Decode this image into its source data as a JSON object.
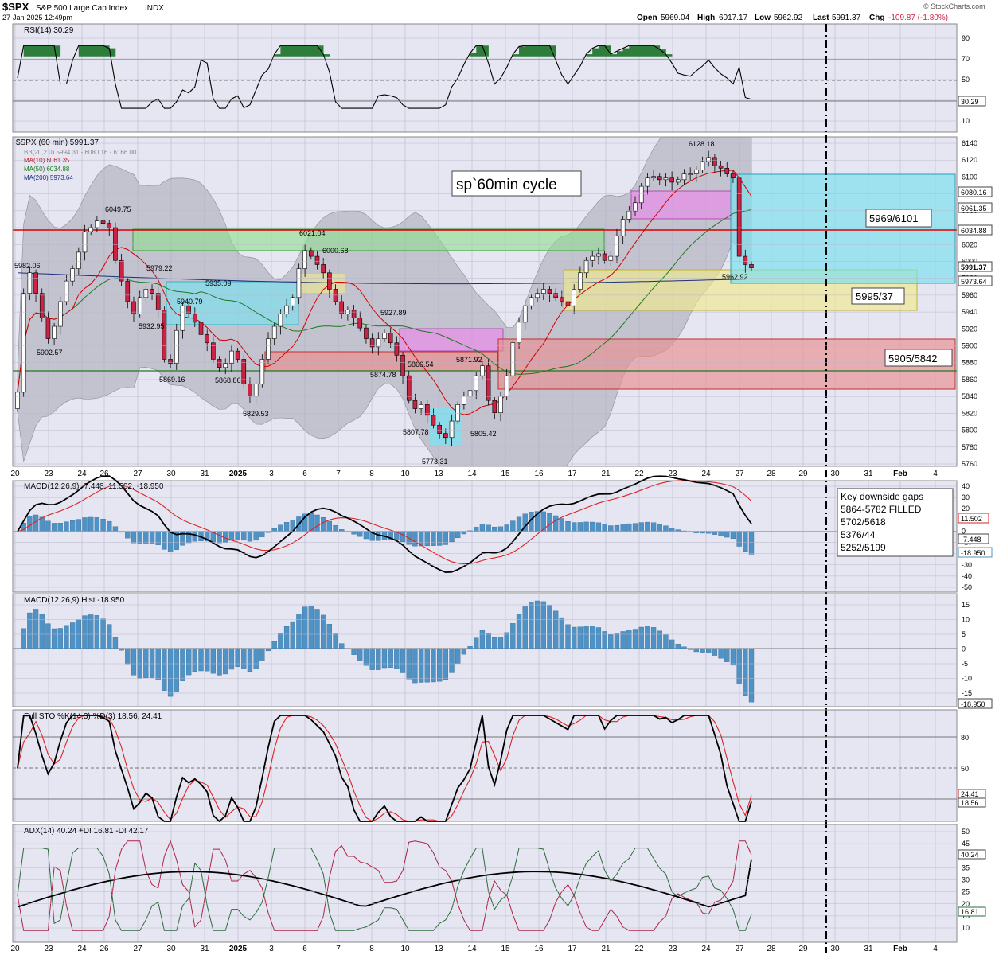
{
  "header": {
    "symbol": "$SPX",
    "name": "S&P 500 Large Cap Index",
    "exchange": "INDX",
    "date": "27-Jan-2025 12:49pm",
    "open_label": "Open",
    "open": "5969.04",
    "high_label": "High",
    "high": "6017.17",
    "low_label": "Low",
    "low": "5962.92",
    "last_label": "Last",
    "last": "5991.37",
    "chg_label": "Chg",
    "chg": "-109.87 (-1.80%)",
    "brand": "© StockCharts.com"
  },
  "colors": {
    "panel_bg": "#e6e6f2",
    "grid": "#b8b8cc",
    "up": "#ffffff",
    "down": "#cc2244",
    "macd_hist": "#4f93c6",
    "green_zone": "#8ee08a",
    "cyan_zone": "#7fe0ee",
    "yellow_zone": "#efe98a",
    "red_zone": "#ea8f8f",
    "magenta_zone": "#e690e6"
  },
  "x_axis": {
    "labels": [
      "20",
      "23",
      "24",
      "26",
      "27",
      "30",
      "31",
      "2025",
      "3",
      "6",
      "7",
      "8",
      "10",
      "13",
      "14",
      "15",
      "16",
      "17",
      "21",
      "22",
      "23",
      "24",
      "27",
      "28",
      "29",
      "30",
      "31",
      "Feb",
      "4"
    ]
  },
  "rsi": {
    "label": "RSI(14) 30.29",
    "value_tag": "30.29",
    "ticks": [
      "90",
      "70",
      "50",
      "30",
      "10"
    ]
  },
  "price": {
    "title": "$SPX (60 min) 5991.37",
    "legend": [
      {
        "text": "BB(20,2.0) 5994.31 - 6080.16 - 6166.00",
        "color": "#888888"
      },
      {
        "text": "MA(10) 6061.35",
        "color": "#cc0000"
      },
      {
        "text": "MA(50) 6034.88",
        "color": "#1c7a1c"
      },
      {
        "text": "MA(200) 5973.64",
        "color": "#1c2f7a"
      }
    ],
    "ticks": [
      "6140",
      "6120",
      "6100",
      "6080",
      "6060",
      "6040",
      "6020",
      "6000",
      "5980",
      "5960",
      "5940",
      "5920",
      "5900",
      "5880",
      "5860",
      "5840",
      "5820",
      "5800",
      "5780",
      "5760"
    ],
    "tags": [
      {
        "text": "6080.16",
        "bg": "#ffffff"
      },
      {
        "text": "6061.35",
        "bg": "#ffffff"
      },
      {
        "text": "6034.88",
        "bg": "#ffffff"
      },
      {
        "text": "5991.37",
        "bg": "#ffffff"
      },
      {
        "text": "5973.64",
        "bg": "#ffffff"
      }
    ],
    "annotations": [
      {
        "text": "6049.75"
      },
      {
        "text": "5982.06"
      },
      {
        "text": "5979.22"
      },
      {
        "text": "5902.57"
      },
      {
        "text": "5932.95"
      },
      {
        "text": "5940.79"
      },
      {
        "text": "5935.09"
      },
      {
        "text": "5869.16"
      },
      {
        "text": "5868.86"
      },
      {
        "text": "5829.53"
      },
      {
        "text": "6021.04"
      },
      {
        "text": "6000.68"
      },
      {
        "text": "5927.89"
      },
      {
        "text": "5874.78"
      },
      {
        "text": "5866.54"
      },
      {
        "text": "5871.92"
      },
      {
        "text": "5807.78"
      },
      {
        "text": "5773.31"
      },
      {
        "text": "5805.42"
      },
      {
        "text": "6128.18"
      },
      {
        "text": "5962.92"
      }
    ],
    "boxes": {
      "cycle": "sp`60min cycle",
      "target_hi": "5969/6101",
      "target_mid": "5995/37",
      "target_lo": "5905/5842"
    }
  },
  "macd": {
    "label": "MACD(12,26,9) -7.448, 11.502, -18.950",
    "ticks": [
      "40",
      "30",
      "20",
      "10",
      "0",
      "-10",
      "-20",
      "-30",
      "-40",
      "-50"
    ],
    "tags": [
      "11.502",
      "-7.448",
      "-18.950"
    ],
    "gaps_note": [
      "Key downside gaps",
      "5864-5782 FILLED",
      "5702/5618",
      "5376/44",
      "5252/5199"
    ]
  },
  "hist": {
    "label": "MACD(12,26,9) Hist -18.950",
    "ticks": [
      "15",
      "10",
      "5",
      "0",
      "-5",
      "-10",
      "-15"
    ],
    "tag": "-18.950"
  },
  "sto": {
    "label": "Full STO %K(14,3) %D(3) 18.56, 24.41",
    "ticks": [
      "80",
      "50"
    ],
    "tags": [
      "24.41",
      "18.56"
    ]
  },
  "adx": {
    "label": "ADX(14) 40.24 +DI 16.81 -DI 42.17",
    "ticks": [
      "50",
      "45",
      "40",
      "35",
      "30",
      "25",
      "20",
      "15",
      "10"
    ],
    "tags": [
      "40.24",
      "16.81"
    ]
  },
  "chart_data": {
    "type": "candlestick",
    "title": "$SPX (60 min) 5991.37",
    "ylim": [
      5750,
      6150
    ],
    "key_levels": {
      "high": 6128.18,
      "low": 5773.31,
      "last": 5991.37,
      "bb_upper": 6166.0,
      "bb_mid": 6080.16,
      "bb_lower": 5994.31,
      "ma10": 6061.35,
      "ma50": 6034.88,
      "ma200": 5973.64
    },
    "labeled_swings": [
      6049.75,
      5982.06,
      5979.22,
      5902.57,
      5932.95,
      5940.79,
      5935.09,
      5869.16,
      5868.86,
      5829.53,
      6021.04,
      6000.68,
      5927.89,
      5874.78,
      5866.54,
      5871.92,
      5807.78,
      5773.31,
      5805.42,
      6128.18,
      5962.92
    ],
    "closes": [
      5840,
      5960,
      5985,
      5960,
      5930,
      5905,
      5920,
      5950,
      5975,
      5990,
      6010,
      6035,
      6040,
      6048,
      6045,
      6040,
      6000,
      5975,
      5950,
      5935,
      5955,
      5965,
      5960,
      5940,
      5880,
      5875,
      5915,
      5945,
      5935,
      5925,
      5910,
      5900,
      5880,
      5870,
      5875,
      5890,
      5880,
      5850,
      5835,
      5850,
      5880,
      5905,
      5920,
      5935,
      5945,
      5955,
      5990,
      6012,
      6005,
      5995,
      5985,
      5965,
      5950,
      5935,
      5940,
      5930,
      5918,
      5905,
      5895,
      5905,
      5912,
      5900,
      5885,
      5860,
      5830,
      5820,
      5825,
      5812,
      5800,
      5790,
      5785,
      5805,
      5825,
      5835,
      5842,
      5860,
      5872,
      5830,
      5815,
      5835,
      5860,
      5900,
      5925,
      5945,
      5955,
      5960,
      5965,
      5960,
      5955,
      5950,
      5945,
      5965,
      5985,
      6000,
      6005,
      6008,
      6000,
      6005,
      6030,
      6050,
      6060,
      6070,
      6090,
      6100,
      6102,
      6098,
      6100,
      6095,
      6098,
      6105,
      6105,
      6110,
      6120,
      6125,
      6115,
      6112,
      6105,
      6100,
      6005,
      5995,
      5991
    ]
  }
}
